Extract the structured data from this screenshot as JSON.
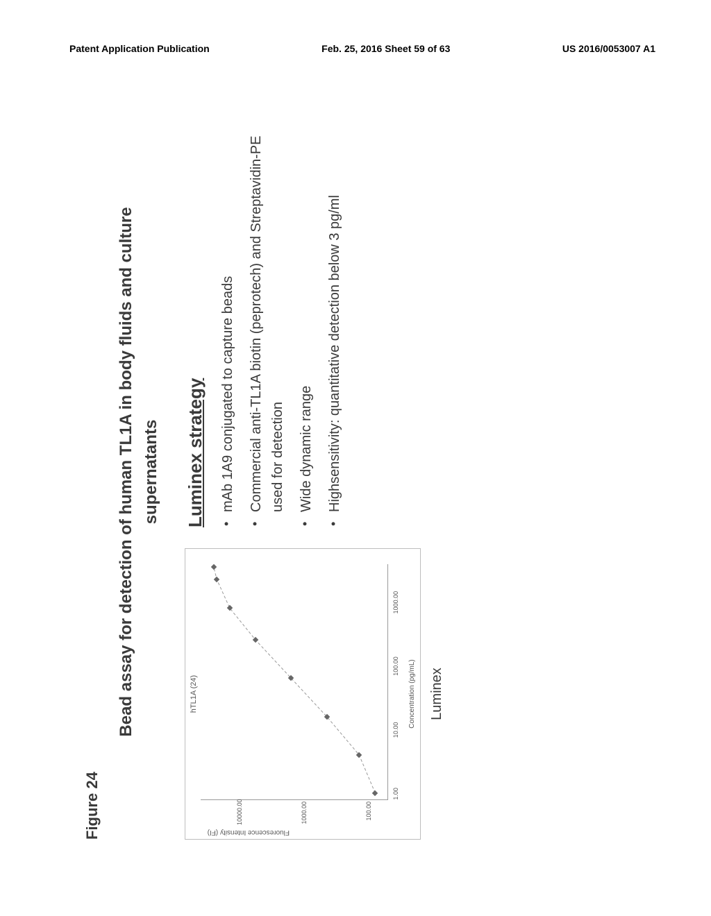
{
  "header": {
    "left": "Patent Application Publication",
    "center": "Feb. 25, 2016  Sheet 59 of 63",
    "right": "US 2016/0053007 A1"
  },
  "figure": {
    "label": "Figure 24",
    "title_line1": "Bead assay for detection of human TL1A in body fluids and culture",
    "title_line2": "supernatants",
    "chart": {
      "inner_title": "hTL1A (24)",
      "y_axis_label": "Fluorescence Intensity (FI)",
      "x_axis_label": "Concentration   (pg/mL)",
      "caption": "Luminex",
      "type": "scatter-log-log",
      "xlim_log10": [
        -0.1,
        3.6
      ],
      "ylim_log10": [
        1.7,
        4.6
      ],
      "x_ticks": [
        {
          "label": "1.00",
          "log": 0
        },
        {
          "label": "10.00",
          "log": 1
        },
        {
          "label": "100.00",
          "log": 2
        },
        {
          "label": "1000.00",
          "log": 3
        }
      ],
      "y_ticks": [
        {
          "label": "100.00",
          "log": 2
        },
        {
          "label": "1000.00",
          "log": 3
        },
        {
          "label": "10000.00",
          "log": 4
        }
      ],
      "points": [
        {
          "x_log": 0.0,
          "y_log": 1.9
        },
        {
          "x_log": 0.6,
          "y_log": 2.15
        },
        {
          "x_log": 1.2,
          "y_log": 2.65
        },
        {
          "x_log": 1.8,
          "y_log": 3.2
        },
        {
          "x_log": 2.4,
          "y_log": 3.75
        },
        {
          "x_log": 2.9,
          "y_log": 4.15
        },
        {
          "x_log": 3.35,
          "y_log": 4.35
        },
        {
          "x_log": 3.55,
          "y_log": 4.4
        }
      ],
      "marker_color": "#666666",
      "line_color": "#999999",
      "border_color": "#bdbdbd",
      "background_color": "#ffffff"
    },
    "strategy": {
      "title": "Luminex strategy",
      "items": [
        "mAb 1A9 conjugated to capture beads",
        "Commercial anti-TL1A biotin (peprotech) and Streptavidin-PE used for detection",
        "Wide dynamic range",
        "Highsensitivity: quantitative detection below 3 pg/ml"
      ]
    }
  }
}
